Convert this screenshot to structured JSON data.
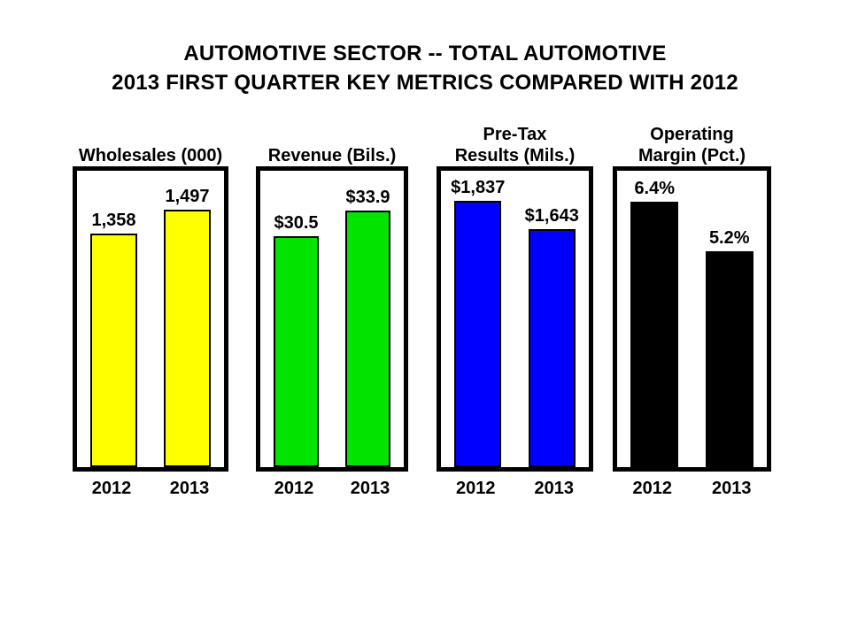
{
  "title": {
    "line1": "AUTOMOTIVE SECTOR -- TOTAL AUTOMOTIVE",
    "line2": "2013 FIRST QUARTER KEY METRICS COMPARED WITH 2012"
  },
  "chart_data": [
    {
      "type": "bar",
      "title": "Wholesales (000)",
      "title_line1": "",
      "title_line2": "Wholesales (000)",
      "categories": [
        "2012",
        "2013"
      ],
      "values": [
        1358,
        1497
      ],
      "value_labels": [
        "1,358",
        "1,497"
      ],
      "bar_color": "#FFFF00",
      "ylim": [
        0,
        1725
      ],
      "grid": false,
      "legend": "none"
    },
    {
      "type": "bar",
      "title": "Revenue (Bils.)",
      "title_line1": "",
      "title_line2": "Revenue (Bils.)",
      "categories": [
        "2012",
        "2013"
      ],
      "values": [
        30.5,
        33.9
      ],
      "value_labels": [
        "$30.5",
        "$33.9"
      ],
      "bar_color": "#00E400",
      "ylim": [
        0,
        39.1
      ],
      "grid": false,
      "legend": "none"
    },
    {
      "type": "bar",
      "title": "Pre-Tax Results (Mils.)",
      "title_line1": "Pre-Tax",
      "title_line2": "Results (Mils.)",
      "categories": [
        "2012",
        "2013"
      ],
      "values": [
        1837,
        1643
      ],
      "value_labels": [
        "$1,837",
        "$1,643"
      ],
      "bar_color": "#0000FF",
      "ylim": [
        0,
        2045
      ],
      "grid": false,
      "legend": "none"
    },
    {
      "type": "bar",
      "title": "Operating Margin (Pct.)",
      "title_line1": "Operating",
      "title_line2": "Margin (Pct.)",
      "categories": [
        "2012",
        "2013"
      ],
      "values": [
        6.4,
        5.2
      ],
      "value_labels": [
        "6.4%",
        "5.2%"
      ],
      "bar_color": "#000000",
      "ylim": [
        0,
        7.15
      ],
      "grid": false,
      "legend": "none"
    }
  ],
  "colors": {
    "background": "#FFFFFF",
    "text": "#000000",
    "box_border": "#000000",
    "bar_wholesales": "#FFFF00",
    "bar_revenue": "#00E400",
    "bar_pretax": "#0000FF",
    "bar_margin": "#000000"
  }
}
